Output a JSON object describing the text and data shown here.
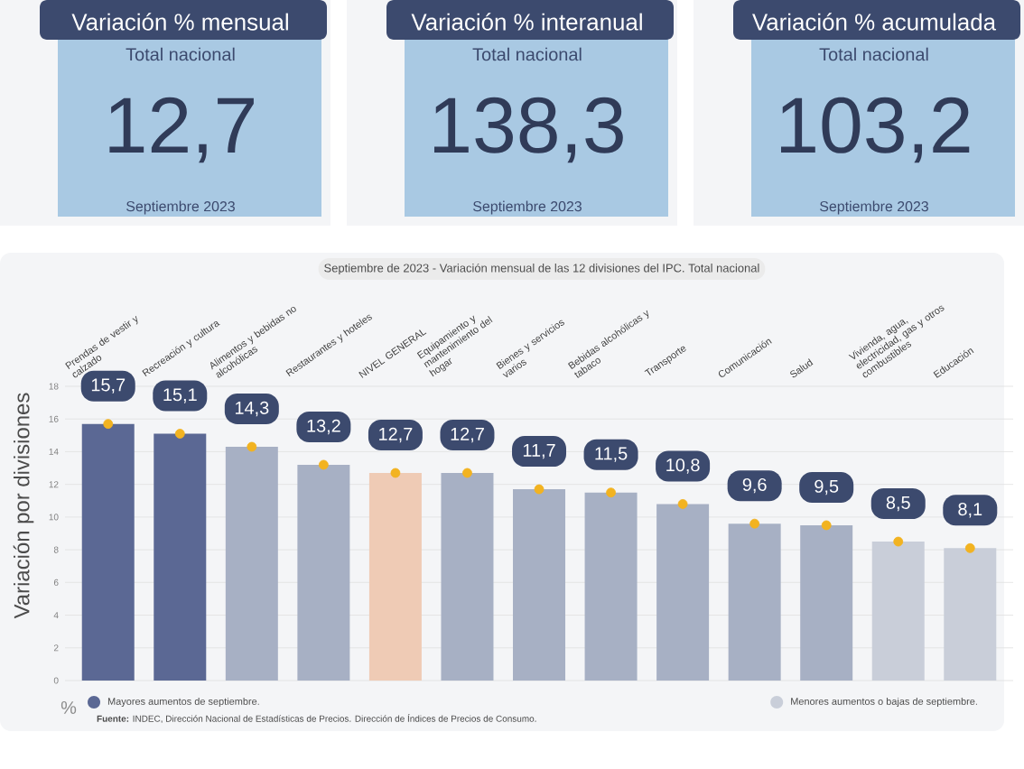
{
  "chart_data": [
    {
      "type": "other",
      "title": "Variación % mensual",
      "subtitle": "Total nacional",
      "annotations": [
        "12,7",
        "Septiembre 2023"
      ]
    },
    {
      "type": "other",
      "title": "Variación % interanual",
      "subtitle": "Total nacional",
      "annotations": [
        "138,3",
        "Septiembre 2023"
      ]
    },
    {
      "type": "other",
      "title": "Variación % acumulada",
      "subtitle": "Total nacional",
      "annotations": [
        "103,2",
        "Septiembre 2023"
      ]
    },
    {
      "type": "bar",
      "title": "Septiembre de 2023 - Variación mensual de las 12 divisiones del IPC. Total nacional",
      "ylabel": "Variación por divisiones",
      "categories": [
        "Prendas de vestir y calzado",
        "Recreación y cultura",
        "Alimentos y bebidas no alcohólicas",
        "Restaurantes y hoteles",
        "NIVEL GENERAL",
        "Equipamiento y mantenimiento del hogar",
        "Bienes y servicios varios",
        "Bebidas alcohólicas y tabaco",
        "Transporte",
        "Comunicación",
        "Salud",
        "Vivienda, agua, electricidad, gas y otros combustibles",
        "Educación"
      ],
      "series": [
        {
          "name": "Mayores aumentos de septiembre.",
          "color": "#5b6894",
          "values": [
            15.7,
            15.1,
            null,
            null,
            null,
            null,
            null,
            null,
            null,
            null,
            null,
            null,
            null
          ],
          "value_labels": [
            "15,7",
            "15,1",
            null,
            null,
            null,
            null,
            null,
            null,
            null,
            null,
            null,
            null,
            null
          ]
        },
        {
          "color": "#a7b0c4",
          "values": [
            null,
            null,
            14.3,
            13.2,
            null,
            12.7,
            11.7,
            11.5,
            10.8,
            9.6,
            9.5,
            null,
            null
          ],
          "value_labels": [
            null,
            null,
            "14,3",
            "13,2",
            null,
            "12,7",
            "11,7",
            "11,5",
            "10,8",
            "9,6",
            "9,5",
            null,
            null
          ]
        },
        {
          "color": "#efcbb5",
          "values": [
            null,
            null,
            null,
            null,
            12.7,
            null,
            null,
            null,
            null,
            null,
            null,
            null,
            null
          ],
          "value_labels": [
            null,
            null,
            null,
            null,
            "12,7",
            null,
            null,
            null,
            null,
            null,
            null,
            null,
            null
          ]
        },
        {
          "name": "Menores aumentos o bajas de septiembre.",
          "color": "#c9ced9",
          "values": [
            null,
            null,
            null,
            null,
            null,
            null,
            null,
            null,
            null,
            null,
            null,
            8.5,
            8.1
          ],
          "value_labels": [
            null,
            null,
            null,
            null,
            null,
            null,
            null,
            null,
            null,
            null,
            null,
            "8,5",
            "8,1"
          ]
        },
        {
          "type": "scatter",
          "color": "#f2b321",
          "marker": "circle",
          "values": [
            15.7,
            15.1,
            14.3,
            13.2,
            12.7,
            12.7,
            11.7,
            11.5,
            10.8,
            9.6,
            9.5,
            8.5,
            8.1
          ]
        }
      ],
      "ylim": [
        0,
        18
      ],
      "yticks": [
        0,
        2,
        4,
        6,
        8,
        10,
        12,
        14,
        16,
        18
      ],
      "grid": "y",
      "legend": "bottom",
      "annotations": [
        "%",
        "**Fuente:** INDEC, Dirección Nacional de Estadísticas de Precios. Dirección de Índices de Precios de Consumo."
      ]
    }
  ]
}
